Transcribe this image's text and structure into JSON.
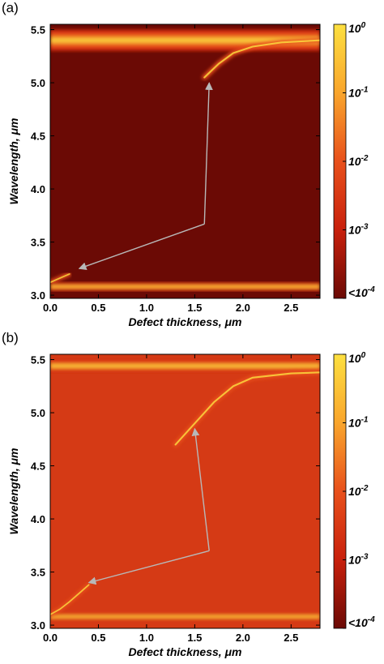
{
  "panel_labels": [
    "(a)",
    "(b)"
  ],
  "colors": {
    "dark_red": "#6b0a05",
    "mid_red": "#c8200c",
    "orange": "#e8501b",
    "yellow": "#fde040",
    "arrow": "#b8b8b8"
  },
  "chart_data": [
    {
      "type": "heatmap",
      "panel": "(a)",
      "xlabel": "Defect thickness, μm",
      "ylabel": "Wavelength, μm",
      "xlim": [
        0,
        2.8
      ],
      "ylim": [
        2.97,
        5.55
      ],
      "xticks": [
        "0.0",
        "0.5",
        "1.0",
        "1.5",
        "2.0",
        "2.5"
      ],
      "xtick_values": [
        0,
        0.5,
        1.0,
        1.5,
        2.0,
        2.5
      ],
      "yticks": [
        "3.0",
        "3.5",
        "4.0",
        "4.5",
        "5.0",
        "5.5"
      ],
      "ytick_values": [
        3.0,
        3.5,
        4.0,
        4.5,
        5.0,
        5.5
      ],
      "background_level": "<10^-4",
      "bands": [
        {
          "wavelength_min": 5.3,
          "wavelength_max": 5.5
        },
        {
          "wavelength_min": 3.04,
          "wavelength_max": 3.12
        }
      ],
      "defect_mode": {
        "x": [
          1.6,
          1.75,
          1.9,
          2.1,
          2.4,
          2.8
        ],
        "y": [
          5.05,
          5.18,
          5.28,
          5.34,
          5.38,
          5.4
        ]
      },
      "defect_mode_lower": {
        "x": [
          0.0,
          0.1,
          0.2
        ],
        "y": [
          3.12,
          3.16,
          3.2
        ]
      },
      "arrows": {
        "x": [
          0.3,
          1.6,
          1.65
        ],
        "y": [
          3.25,
          3.67,
          5.0
        ]
      },
      "colorbar": {
        "ticks": [
          "10^0",
          "10^-1",
          "10^-2",
          "10^-3",
          "<10^-4"
        ],
        "scale": "log"
      }
    },
    {
      "type": "heatmap",
      "panel": "(b)",
      "xlabel": "Defect thickness, μm",
      "ylabel": "Wavelength, μm",
      "xlim": [
        0,
        2.8
      ],
      "ylim": [
        2.97,
        5.55
      ],
      "xticks": [
        "0.0",
        "0.5",
        "1.0",
        "1.5",
        "2.0",
        "2.5"
      ],
      "xtick_values": [
        0,
        0.5,
        1.0,
        1.5,
        2.0,
        2.5
      ],
      "yticks": [
        "3.0",
        "3.5",
        "4.0",
        "4.5",
        "5.0",
        "5.5"
      ],
      "ytick_values": [
        3.0,
        3.5,
        4.0,
        4.5,
        5.0,
        5.5
      ],
      "background_level": "10^-2",
      "bands": [
        {
          "wavelength_min": 5.38,
          "wavelength_max": 5.5
        },
        {
          "wavelength_min": 3.04,
          "wavelength_max": 3.12
        }
      ],
      "defect_mode": {
        "x": [
          1.3,
          1.5,
          1.7,
          1.9,
          2.1,
          2.5,
          2.8
        ],
        "y": [
          4.7,
          4.9,
          5.1,
          5.25,
          5.33,
          5.37,
          5.38
        ]
      },
      "defect_mode_lower": {
        "x": [
          0.0,
          0.1,
          0.2,
          0.3,
          0.4
        ],
        "y": [
          3.1,
          3.15,
          3.22,
          3.3,
          3.38
        ]
      },
      "arrows": {
        "x": [
          0.4,
          1.65,
          1.5
        ],
        "y": [
          3.4,
          3.7,
          4.85
        ]
      },
      "colorbar": {
        "ticks": [
          "10^0",
          "10^-1",
          "10^-2",
          "10^-3",
          "<10^-4"
        ],
        "scale": "log"
      }
    }
  ]
}
